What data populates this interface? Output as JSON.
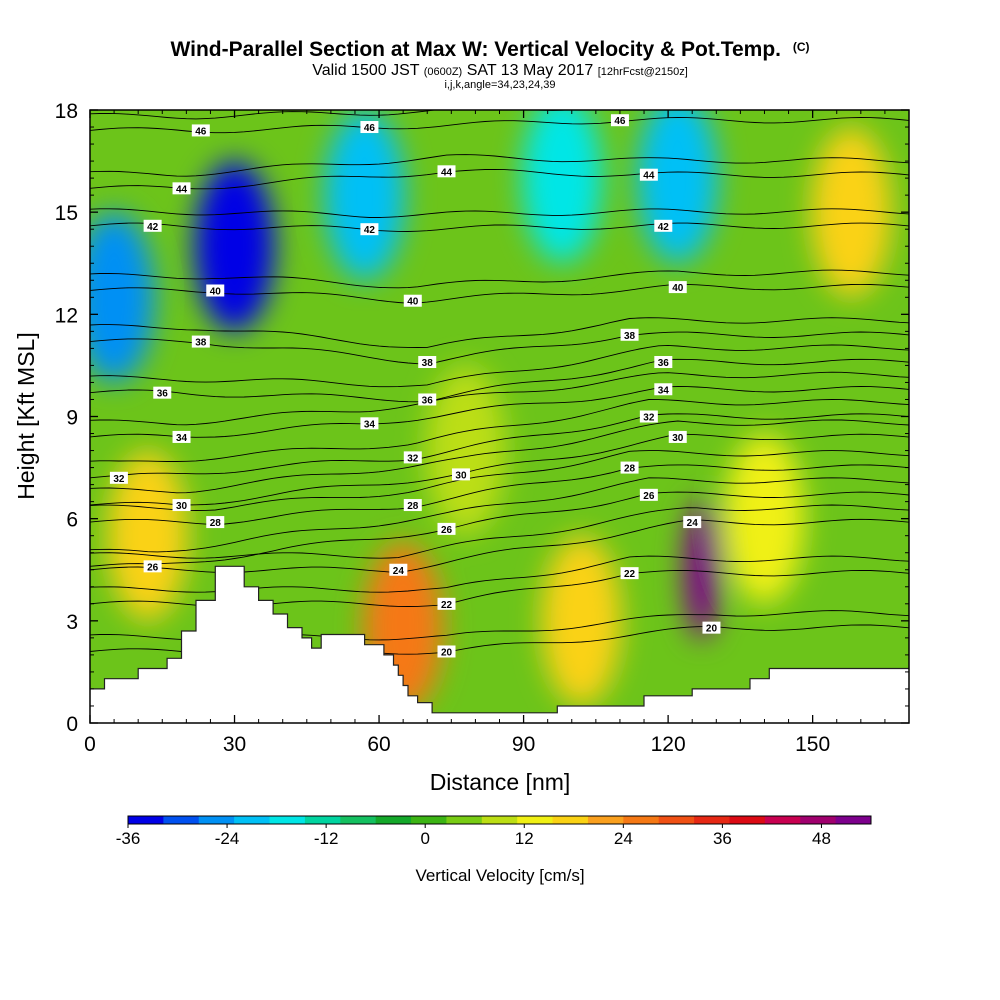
{
  "chart_data": {
    "type": "heatmap",
    "title": "Wind-Parallel Section at Max W: Vertical Velocity & Pot.Temp.",
    "title_tag": "(C)",
    "subtitle_main": "Valid 1500 JST",
    "subtitle_z": "(0600Z)",
    "subtitle_date": "SAT 13 May 2017",
    "subtitle_fcst": "[12hrFcst@2150z]",
    "subtitle2": "i,j,k,angle=34,23,24,39",
    "xlabel": "Distance [nm]",
    "ylabel": "Height [Kft MSL]",
    "xlim": [
      0,
      170
    ],
    "ylim": [
      0,
      18
    ],
    "xticks": [
      0,
      30,
      60,
      90,
      120,
      150
    ],
    "yticks": [
      0,
      3,
      6,
      9,
      12,
      15,
      18
    ],
    "colorbar": {
      "label": "Vertical Velocity [cm/s]",
      "range": [
        -36,
        54
      ],
      "tick_values": [
        -36,
        -24,
        -12,
        0,
        12,
        24,
        36,
        48
      ],
      "tick_labels": [
        "-36",
        "-24",
        "-12",
        "0",
        "12",
        "24",
        "36",
        "48"
      ],
      "colors": [
        "#0000e6",
        "#0050f0",
        "#0090f4",
        "#00c0f6",
        "#00e6e6",
        "#00d4a0",
        "#14c060",
        "#14a82a",
        "#3cb414",
        "#78cc14",
        "#bcde14",
        "#f0f014",
        "#fad214",
        "#faa01e",
        "#f57814",
        "#f05014",
        "#e62814",
        "#dc0a14",
        "#c80050",
        "#a0006e",
        "#7d008c"
      ]
    },
    "velocity_features": [
      {
        "x": 30,
        "z": 14,
        "w": -36
      },
      {
        "x": 5,
        "z": 12.5,
        "w": -24
      },
      {
        "x": 57,
        "z": 15.5,
        "w": -20
      },
      {
        "x": 98,
        "z": 16,
        "w": -18
      },
      {
        "x": 122,
        "z": 16,
        "w": -22
      },
      {
        "x": 127,
        "z": 4.5,
        "w": 50
      },
      {
        "x": 65,
        "z": 2.8,
        "w": 28
      },
      {
        "x": 12,
        "z": 5.5,
        "w": 16
      },
      {
        "x": 102,
        "z": 3,
        "w": 16
      },
      {
        "x": 158,
        "z": 15,
        "w": 18
      },
      {
        "x": 140,
        "z": 6,
        "w": 12
      },
      {
        "x": 78,
        "z": 8,
        "w": 8
      }
    ],
    "theta_contour_labels": [
      {
        "label": "46",
        "x": 23,
        "z": 17.4
      },
      {
        "label": "46",
        "x": 58,
        "z": 17.5
      },
      {
        "label": "46",
        "x": 110,
        "z": 17.7
      },
      {
        "label": "44",
        "x": 19,
        "z": 15.7
      },
      {
        "label": "44",
        "x": 74,
        "z": 16.2
      },
      {
        "label": "44",
        "x": 116,
        "z": 16.1
      },
      {
        "label": "42",
        "x": 13,
        "z": 14.6
      },
      {
        "label": "42",
        "x": 58,
        "z": 14.5
      },
      {
        "label": "42",
        "x": 119,
        "z": 14.6
      },
      {
        "label": "40",
        "x": 26,
        "z": 12.7
      },
      {
        "label": "40",
        "x": 67,
        "z": 12.4
      },
      {
        "label": "40",
        "x": 122,
        "z": 12.8
      },
      {
        "label": "38",
        "x": 23,
        "z": 11.2
      },
      {
        "label": "38",
        "x": 70,
        "z": 10.6
      },
      {
        "label": "38",
        "x": 112,
        "z": 11.4
      },
      {
        "label": "36",
        "x": 15,
        "z": 9.7
      },
      {
        "label": "36",
        "x": 70,
        "z": 9.5
      },
      {
        "label": "36",
        "x": 119,
        "z": 10.6
      },
      {
        "label": "34",
        "x": 19,
        "z": 8.4
      },
      {
        "label": "34",
        "x": 58,
        "z": 8.8
      },
      {
        "label": "34",
        "x": 119,
        "z": 9.8
      },
      {
        "label": "32",
        "x": 6,
        "z": 7.2
      },
      {
        "label": "32",
        "x": 67,
        "z": 7.8
      },
      {
        "label": "32",
        "x": 116,
        "z": 9.0
      },
      {
        "label": "30",
        "x": 19,
        "z": 6.4
      },
      {
        "label": "30",
        "x": 77,
        "z": 7.3
      },
      {
        "label": "30",
        "x": 122,
        "z": 8.4
      },
      {
        "label": "28",
        "x": 26,
        "z": 5.9
      },
      {
        "label": "28",
        "x": 67,
        "z": 6.4
      },
      {
        "label": "28",
        "x": 112,
        "z": 7.5
      },
      {
        "label": "26",
        "x": 13,
        "z": 4.6
      },
      {
        "label": "26",
        "x": 74,
        "z": 5.7
      },
      {
        "label": "26",
        "x": 116,
        "z": 6.7
      },
      {
        "label": "24",
        "x": 64,
        "z": 4.5
      },
      {
        "label": "24",
        "x": 125,
        "z": 5.9
      },
      {
        "label": "22",
        "x": 74,
        "z": 3.5
      },
      {
        "label": "22",
        "x": 112,
        "z": 4.4
      },
      {
        "label": "20",
        "x": 74,
        "z": 2.1
      },
      {
        "label": "20",
        "x": 129,
        "z": 2.8
      }
    ],
    "terrain": [
      [
        0,
        1.0
      ],
      [
        3,
        1.0
      ],
      [
        3,
        1.3
      ],
      [
        10,
        1.3
      ],
      [
        10,
        1.6
      ],
      [
        16,
        1.6
      ],
      [
        16,
        1.9
      ],
      [
        19,
        1.9
      ],
      [
        19,
        2.7
      ],
      [
        22,
        2.7
      ],
      [
        22,
        3.6
      ],
      [
        26,
        3.6
      ],
      [
        26,
        4.6
      ],
      [
        32,
        4.6
      ],
      [
        32,
        4.0
      ],
      [
        35,
        4.0
      ],
      [
        35,
        3.6
      ],
      [
        38,
        3.6
      ],
      [
        38,
        3.2
      ],
      [
        41,
        3.2
      ],
      [
        41,
        2.8
      ],
      [
        44,
        2.8
      ],
      [
        44,
        2.5
      ],
      [
        46,
        2.5
      ],
      [
        46,
        2.2
      ],
      [
        48,
        2.2
      ],
      [
        48,
        2.6
      ],
      [
        57,
        2.6
      ],
      [
        57,
        2.3
      ],
      [
        61,
        2.3
      ],
      [
        61,
        2.0
      ],
      [
        63,
        2.0
      ],
      [
        63,
        1.7
      ],
      [
        64,
        1.7
      ],
      [
        64,
        1.4
      ],
      [
        65,
        1.4
      ],
      [
        65,
        1.1
      ],
      [
        66,
        1.1
      ],
      [
        66,
        0.8
      ],
      [
        68,
        0.8
      ],
      [
        68,
        0.6
      ],
      [
        71,
        0.6
      ],
      [
        71,
        0.3
      ],
      [
        97,
        0.3
      ],
      [
        97,
        0.5
      ],
      [
        115,
        0.5
      ],
      [
        115,
        0.8
      ],
      [
        125,
        0.8
      ],
      [
        125,
        1.0
      ],
      [
        137,
        1.0
      ],
      [
        137,
        1.3
      ],
      [
        141,
        1.3
      ],
      [
        141,
        1.6
      ],
      [
        170,
        1.6
      ]
    ]
  }
}
